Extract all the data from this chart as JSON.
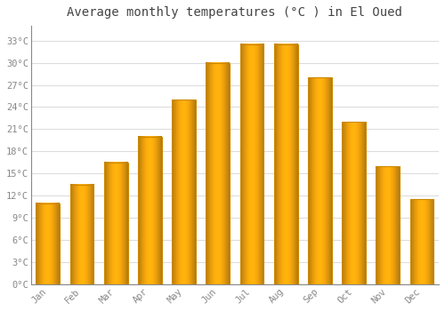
{
  "title": "Average monthly temperatures (°C ) in El Oued",
  "months": [
    "Jan",
    "Feb",
    "Mar",
    "Apr",
    "May",
    "Jun",
    "Jul",
    "Aug",
    "Sep",
    "Oct",
    "Nov",
    "Dec"
  ],
  "values": [
    11,
    13.5,
    16.5,
    20,
    25,
    30,
    32.5,
    32.5,
    28,
    22,
    16,
    11.5
  ],
  "bar_color": "#FFA820",
  "bar_edge_color": "#CC8800",
  "background_color": "#FFFFFF",
  "plot_bg_color": "#FFFFFF",
  "grid_color": "#DDDDDD",
  "ylim": [
    0,
    35
  ],
  "yticks": [
    0,
    3,
    6,
    9,
    12,
    15,
    18,
    21,
    24,
    27,
    30,
    33
  ],
  "ytick_labels": [
    "0°C",
    "3°C",
    "6°C",
    "9°C",
    "12°C",
    "15°C",
    "18°C",
    "21°C",
    "24°C",
    "27°C",
    "30°C",
    "33°C"
  ],
  "title_fontsize": 10,
  "tick_fontsize": 7.5,
  "font_color": "#888888",
  "title_color": "#444444"
}
